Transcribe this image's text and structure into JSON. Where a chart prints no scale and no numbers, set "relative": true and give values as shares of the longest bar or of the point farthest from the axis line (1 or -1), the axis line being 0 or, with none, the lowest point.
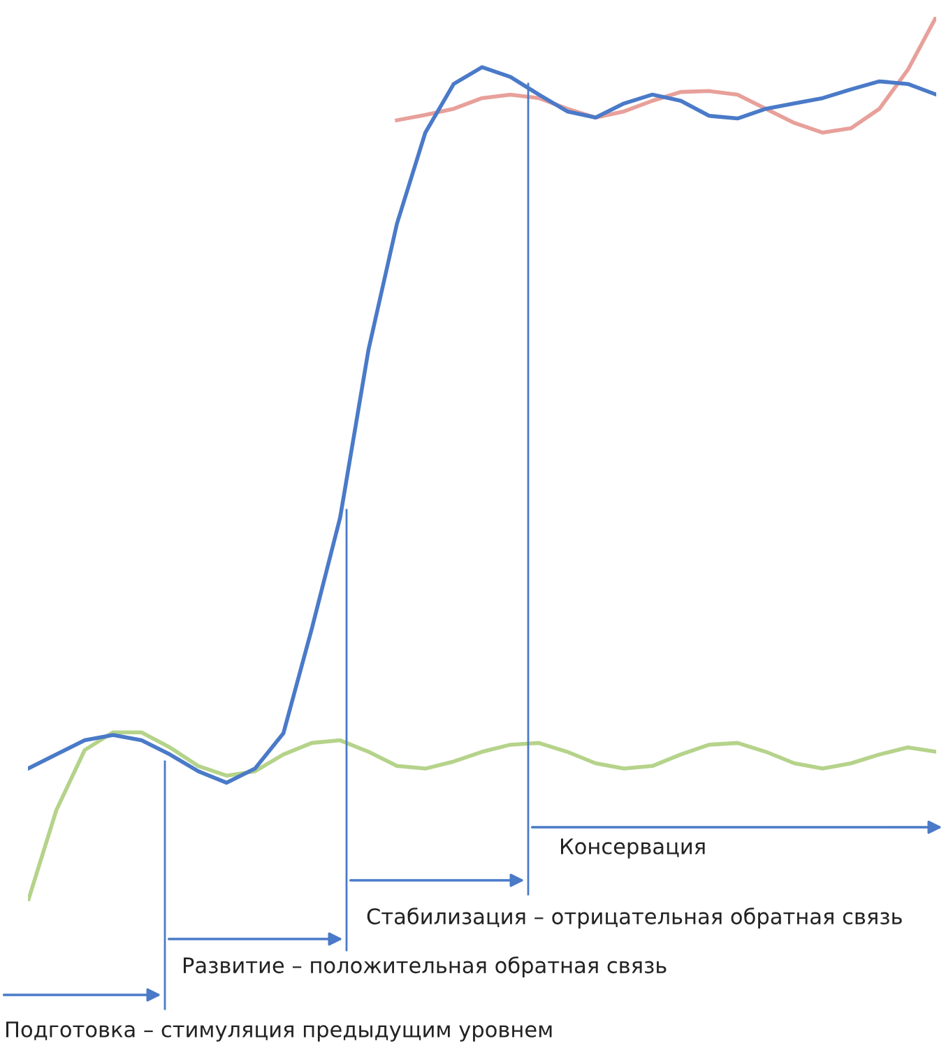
{
  "chart_data": {
    "type": "line",
    "relative": true,
    "grid": false,
    "legend": false,
    "marker": "none",
    "line_style": "solid",
    "categories": [
      null,
      null,
      null,
      null,
      null,
      null,
      null,
      null,
      null,
      null,
      null,
      null,
      null,
      null,
      null,
      null,
      null,
      null,
      null,
      null,
      null,
      null,
      null,
      null,
      null,
      null,
      null,
      null,
      null,
      null,
      null,
      null,
      null
    ],
    "series": [
      {
        "color": "#b5d38a",
        "values": [
          0,
          0.103,
          0.171,
          0.191,
          0.191,
          0.174,
          0.153,
          0.142,
          0.147,
          0.166,
          0.179,
          0.182,
          0.169,
          0.153,
          0.15,
          0.158,
          0.169,
          0.177,
          0.179,
          0.169,
          0.156,
          0.15,
          0.153,
          0.166,
          0.177,
          0.179,
          0.169,
          0.156,
          0.15,
          0.156,
          0.166,
          0.174,
          0.169
        ]
      },
      {
        "color": "#e8a09a",
        "values": [
          null,
          null,
          null,
          null,
          null,
          null,
          null,
          null,
          null,
          null,
          null,
          null,
          null,
          0.883,
          0.889,
          0.896,
          0.908,
          0.912,
          0.908,
          0.896,
          0.886,
          0.893,
          0.905,
          0.915,
          0.916,
          0.912,
          0.896,
          0.88,
          0.869,
          0.874,
          0.896,
          0.94,
          1
        ]
      },
      {
        "color": "#4a7ac8",
        "values": [
          0.15,
          0.166,
          0.182,
          0.188,
          0.182,
          0.166,
          0.147,
          0.134,
          0.15,
          0.19,
          0.308,
          0.434,
          0.624,
          0.766,
          0.869,
          0.924,
          0.943,
          0.932,
          0.912,
          0.893,
          0.886,
          0.902,
          0.912,
          0.905,
          0.888,
          0.885,
          0.896,
          0.902,
          0.908,
          0.918,
          0.927,
          0.924,
          0.912
        ]
      }
    ],
    "annotations": [
      "Консервация",
      "Стабилизация – отрицательная обратная связь",
      "Развитие – положительная обратная связь",
      "Подготовка – стимуляция предыдущим уровнем"
    ]
  }
}
